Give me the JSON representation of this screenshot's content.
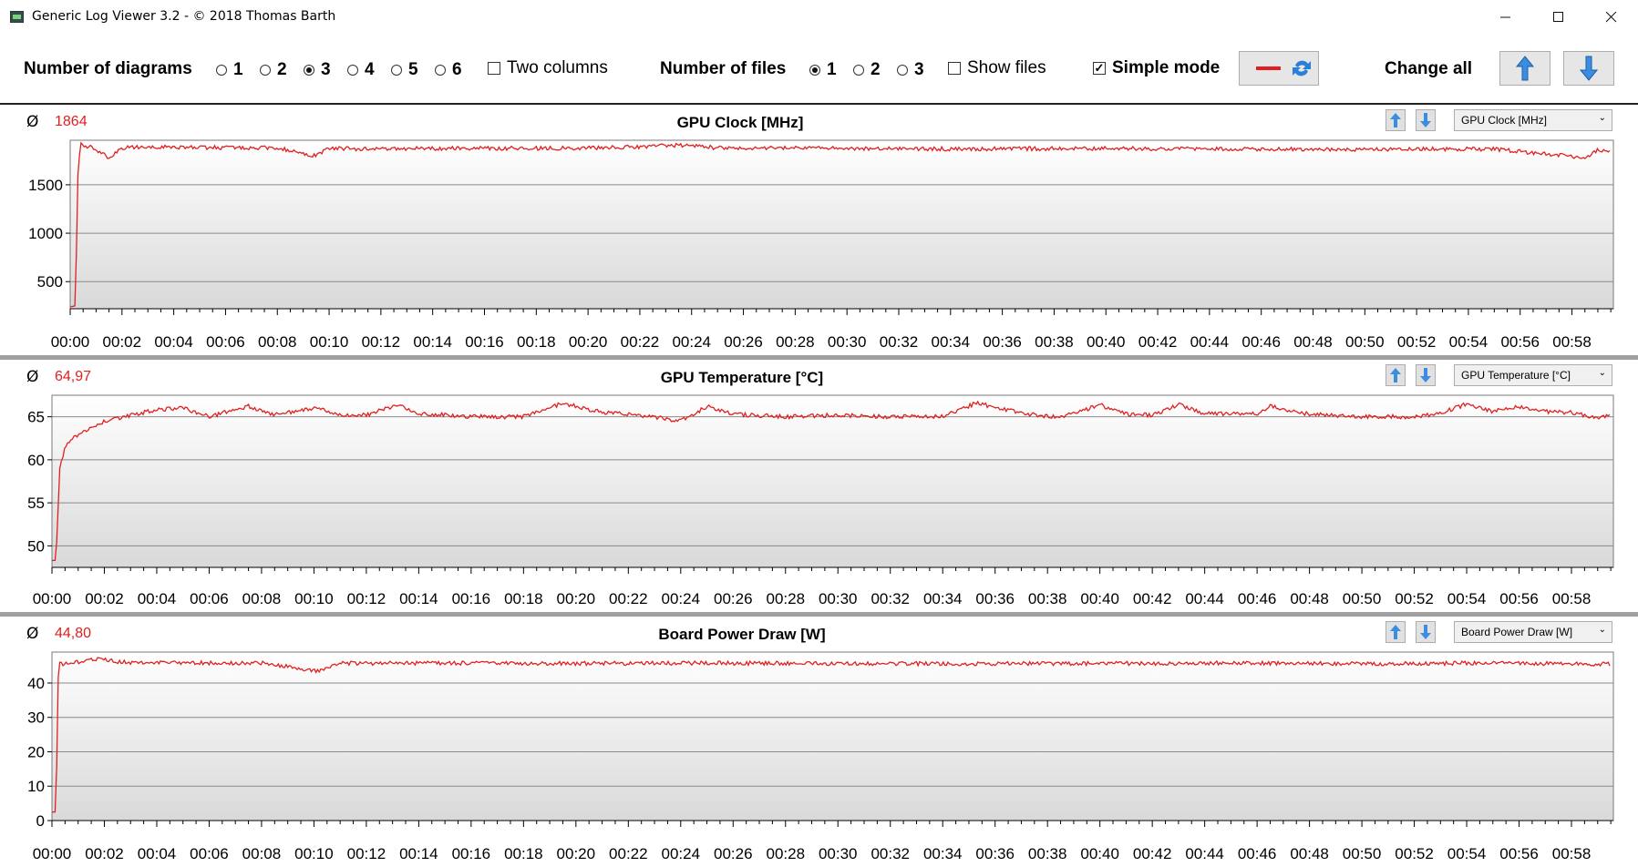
{
  "window": {
    "title": "Generic Log Viewer 3.2 - © 2018 Thomas Barth",
    "minimize_icon": "minimize-icon",
    "maximize_icon": "maximize-icon",
    "close_icon": "close-icon"
  },
  "toolbar": {
    "num_diagrams_label": "Number of diagrams",
    "diagram_options": [
      "1",
      "2",
      "3",
      "4",
      "5",
      "6"
    ],
    "diagram_selected": "3",
    "two_columns_label": "Two columns",
    "two_columns_checked": false,
    "num_files_label": "Number of files",
    "file_options": [
      "1",
      "2",
      "3"
    ],
    "file_selected": "1",
    "show_files_label": "Show files",
    "show_files_checked": false,
    "simple_mode_label": "Simple mode",
    "simple_mode_checked": true,
    "change_all_label": "Change all",
    "line_color": "#e02020",
    "refresh_icon": "refresh-icon",
    "up_icon": "arrow-up-icon",
    "down_icon": "arrow-down-icon"
  },
  "panels": [
    {
      "avg_symbol": "Ø",
      "avg_value": "1864",
      "title": "GPU Clock [MHz]",
      "selector_value": "GPU Clock [MHz]"
    },
    {
      "avg_symbol": "Ø",
      "avg_value": "64,97",
      "title": "GPU Temperature [°C]",
      "selector_value": "GPU Temperature [°C]"
    },
    {
      "avg_symbol": "Ø",
      "avg_value": "44,80",
      "title": "Board Power Draw [W]",
      "selector_value": "Board Power Draw [W]"
    }
  ],
  "chart_data": [
    {
      "type": "line",
      "title": "GPU Clock [MHz]",
      "line_color": "#e02020",
      "x_ticks": [
        "00:00",
        "00:02",
        "00:04",
        "00:06",
        "00:08",
        "00:10",
        "00:12",
        "00:14",
        "00:16",
        "00:18",
        "00:20",
        "00:22",
        "00:24",
        "00:26",
        "00:28",
        "00:30",
        "00:32",
        "00:34",
        "00:36",
        "00:38",
        "00:40",
        "00:42",
        "00:44",
        "00:46",
        "00:48",
        "00:50",
        "00:52",
        "00:54",
        "00:56",
        "00:58"
      ],
      "y_ticks": [
        500,
        1000,
        1500
      ],
      "ylim": [
        220,
        1960
      ],
      "xlim_minutes": [
        0,
        59.6
      ],
      "grid": true,
      "series": [
        {
          "x_minutes": [
            0,
            0.2,
            0.3,
            0.4,
            0.6,
            0.9,
            1.5,
            2,
            3,
            5,
            8,
            9.5,
            10,
            11,
            15,
            20,
            24,
            25,
            30,
            35,
            40,
            45,
            50,
            55,
            58.5,
            59,
            59.5
          ],
          "values": [
            240,
            250,
            1600,
            1930,
            1900,
            1880,
            1780,
            1880,
            1890,
            1885,
            1880,
            1800,
            1880,
            1870,
            1875,
            1880,
            1910,
            1880,
            1875,
            1870,
            1875,
            1870,
            1865,
            1870,
            1780,
            1860,
            1850
          ]
        }
      ]
    },
    {
      "type": "line",
      "title": "GPU Temperature [°C]",
      "line_color": "#e02020",
      "x_ticks": [
        "00:00",
        "00:02",
        "00:04",
        "00:06",
        "00:08",
        "00:10",
        "00:12",
        "00:14",
        "00:16",
        "00:18",
        "00:20",
        "00:22",
        "00:24",
        "00:26",
        "00:28",
        "00:30",
        "00:32",
        "00:34",
        "00:36",
        "00:38",
        "00:40",
        "00:42",
        "00:44",
        "00:46",
        "00:48",
        "00:50",
        "00:52",
        "00:54",
        "00:56",
        "00:58"
      ],
      "y_ticks": [
        50,
        55,
        60,
        65
      ],
      "ylim": [
        47.5,
        67.5
      ],
      "xlim_minutes": [
        0,
        59.6
      ],
      "grid": true,
      "series": [
        {
          "x_minutes": [
            0,
            0.15,
            0.3,
            0.5,
            1,
            2,
            3,
            4,
            5,
            6,
            7.5,
            8.5,
            10,
            11,
            12,
            13.2,
            14,
            16,
            18,
            19.5,
            21,
            23,
            24,
            25,
            26,
            28,
            30,
            32,
            34,
            35.3,
            37,
            38.5,
            40,
            41,
            42,
            43,
            44,
            46,
            46.5,
            48,
            50,
            52,
            53,
            54,
            55,
            56,
            57,
            58,
            59,
            59.5
          ],
          "values": [
            48.3,
            48.3,
            59,
            61.5,
            63,
            64.5,
            65.2,
            65.8,
            66,
            65,
            66.2,
            65.2,
            66,
            65.3,
            65.2,
            66.4,
            65.4,
            65,
            65,
            66.6,
            65.5,
            65,
            64.5,
            66.2,
            65.3,
            65,
            65.2,
            65,
            65,
            66.6,
            65.4,
            64.9,
            66.4,
            65.3,
            65.2,
            66.4,
            65.4,
            65.3,
            66.2,
            65.3,
            65,
            65,
            65.4,
            66.5,
            65.6,
            66.2,
            65.6,
            65.5,
            64.8,
            65.3
          ]
        }
      ]
    },
    {
      "type": "line",
      "title": "Board Power Draw [W]",
      "line_color": "#e02020",
      "x_ticks": [
        "00:00",
        "00:02",
        "00:04",
        "00:06",
        "00:08",
        "00:10",
        "00:12",
        "00:14",
        "00:16",
        "00:18",
        "00:20",
        "00:22",
        "00:24",
        "00:26",
        "00:28",
        "00:30",
        "00:32",
        "00:34",
        "00:36",
        "00:38",
        "00:40",
        "00:42",
        "00:44",
        "00:46",
        "00:48",
        "00:50",
        "00:52",
        "00:54",
        "00:56",
        "00:58"
      ],
      "y_ticks": [
        0,
        10,
        20,
        30,
        40
      ],
      "ylim": [
        0,
        49
      ],
      "xlim_minutes": [
        0,
        59.6
      ],
      "grid": true,
      "series": [
        {
          "x_minutes": [
            0,
            0.15,
            0.25,
            0.35,
            1,
            1.8,
            3,
            5,
            8,
            10.2,
            11,
            15,
            20,
            25,
            30,
            35,
            40,
            45,
            50,
            55,
            59.5
          ],
          "values": [
            2.5,
            2.5,
            46,
            45.5,
            46,
            47,
            45.8,
            45.9,
            45.8,
            43.5,
            45.7,
            45.8,
            45.7,
            45.8,
            45.7,
            45.6,
            45.7,
            45.8,
            45.6,
            45.8,
            45.5
          ]
        }
      ]
    }
  ]
}
